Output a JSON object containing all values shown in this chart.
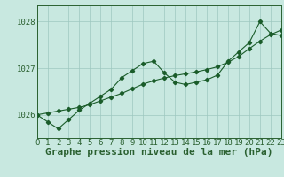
{
  "title": "Graphe pression niveau de la mer (hPa)",
  "background_color": "#c8e8e0",
  "line_color": "#1a5c2a",
  "grid_color": "#9dc8c0",
  "axis_color": "#2a6030",
  "hours": [
    0,
    1,
    2,
    3,
    4,
    5,
    6,
    7,
    8,
    9,
    10,
    11,
    12,
    13,
    14,
    15,
    16,
    17,
    18,
    19,
    20,
    21,
    22,
    23
  ],
  "pressure": [
    1026.0,
    1025.85,
    1025.7,
    1025.9,
    1026.1,
    1026.25,
    1026.4,
    1026.55,
    1026.8,
    1026.95,
    1027.1,
    1027.15,
    1026.9,
    1026.7,
    1026.65,
    1026.7,
    1026.75,
    1026.85,
    1027.15,
    1027.35,
    1027.55,
    1028.0,
    1027.75,
    1027.7
  ],
  "trend": [
    1026.0,
    1026.04,
    1026.08,
    1026.12,
    1026.16,
    1026.22,
    1026.3,
    1026.38,
    1026.46,
    1026.56,
    1026.66,
    1026.73,
    1026.79,
    1026.84,
    1026.88,
    1026.92,
    1026.97,
    1027.03,
    1027.13,
    1027.25,
    1027.42,
    1027.58,
    1027.72,
    1027.82
  ],
  "ylim": [
    1025.5,
    1028.35
  ],
  "yticks": [
    1026,
    1027,
    1028
  ],
  "xlim": [
    0,
    23
  ],
  "xticks": [
    0,
    1,
    2,
    3,
    4,
    5,
    6,
    7,
    8,
    9,
    10,
    11,
    12,
    13,
    14,
    15,
    16,
    17,
    18,
    19,
    20,
    21,
    22,
    23
  ],
  "title_fontsize": 8,
  "tick_fontsize": 6.5
}
